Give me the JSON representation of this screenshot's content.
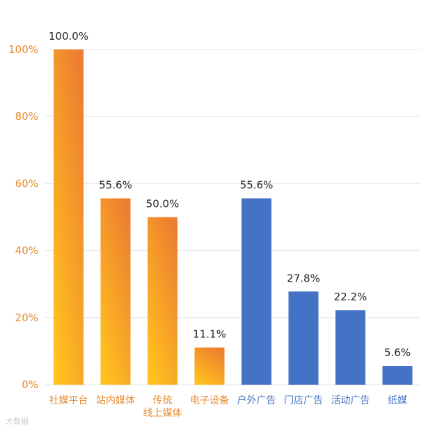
{
  "chart_data": {
    "type": "bar",
    "ylim": [
      0,
      100
    ],
    "yticks": [
      "0%",
      "20%",
      "40%",
      "60%",
      "80%",
      "100%"
    ],
    "grid": true,
    "categories": [
      {
        "label_lines": [
          "社媒平台"
        ],
        "value": 100.0,
        "data_label": "100.0%",
        "group": "orange"
      },
      {
        "label_lines": [
          "站内媒体"
        ],
        "value": 55.6,
        "data_label": "55.6%",
        "group": "orange"
      },
      {
        "label_lines": [
          "传统",
          "线上媒体"
        ],
        "value": 50.0,
        "data_label": "50.0%",
        "group": "orange"
      },
      {
        "label_lines": [
          "电子设备"
        ],
        "value": 11.1,
        "data_label": "11.1%",
        "group": "orange"
      },
      {
        "label_lines": [
          "户外广告"
        ],
        "value": 55.6,
        "data_label": "55.6%",
        "group": "blue"
      },
      {
        "label_lines": [
          "门店广告"
        ],
        "value": 27.8,
        "data_label": "27.8%",
        "group": "blue"
      },
      {
        "label_lines": [
          "活动广告"
        ],
        "value": 22.2,
        "data_label": "22.2%",
        "group": "blue"
      },
      {
        "label_lines": [
          "纸媒"
        ],
        "value": 5.6,
        "data_label": "5.6%",
        "group": "blue"
      }
    ],
    "colors": {
      "orange_top": "#ED7D31",
      "orange_bottom": "#FFC21F",
      "blue": "#4472C4",
      "axis_text": "#E88A2E",
      "grid": "#E6E6E6",
      "data_label": "#222222"
    }
  },
  "watermark": "大数据"
}
